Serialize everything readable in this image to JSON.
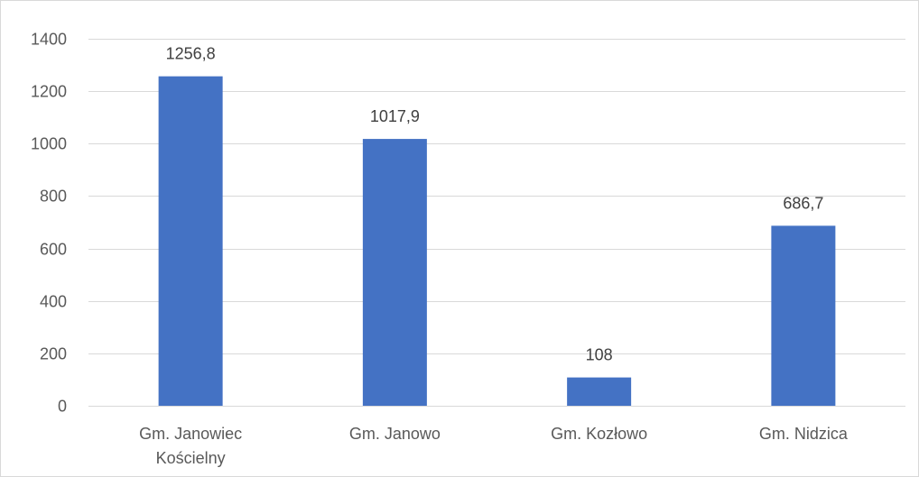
{
  "chart_data": {
    "type": "bar",
    "title": "",
    "xlabel": "",
    "ylabel": "",
    "categories": [
      [
        "Gm. Janowiec",
        "Kościelny"
      ],
      [
        "Gm. Janowo"
      ],
      [
        "Gm. Kozłowo"
      ],
      [
        "Gm. Nidzica"
      ]
    ],
    "values": [
      1256.8,
      1017.9,
      108,
      686.7
    ],
    "data_labels": [
      "1256,8",
      "1017,9",
      "108",
      "686,7"
    ],
    "ylim": [
      0,
      1400
    ],
    "yticks": [
      0,
      200,
      400,
      600,
      800,
      1000,
      1200,
      1400
    ],
    "grid": true,
    "legend": "none",
    "bar_color": "#4472c4",
    "grid_color": "#d9d9d9"
  }
}
